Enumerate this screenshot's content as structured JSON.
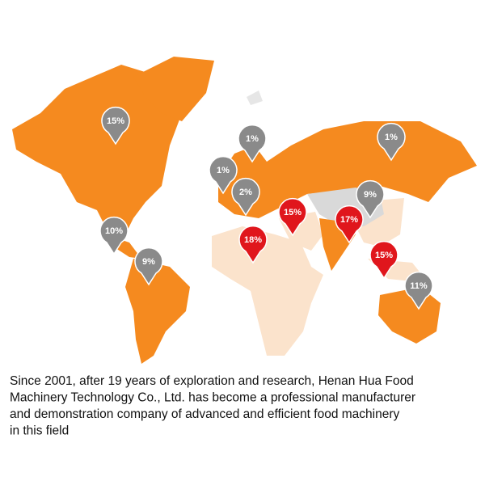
{
  "map": {
    "pins": [
      {
        "label": "15%",
        "color": "#8a8a8a"
      },
      {
        "label": "1%",
        "color": "#8a8a8a"
      },
      {
        "label": "1%",
        "color": "#8a8a8a"
      },
      {
        "label": "1%",
        "color": "#8a8a8a"
      },
      {
        "label": "2%",
        "color": "#8a8a8a"
      },
      {
        "label": "9%",
        "color": "#8a8a8a"
      },
      {
        "label": "15%",
        "color": "#e0161c"
      },
      {
        "label": "17%",
        "color": "#e0161c"
      },
      {
        "label": "10%",
        "color": "#8a8a8a"
      },
      {
        "label": "18%",
        "color": "#e0161c"
      },
      {
        "label": "9%",
        "color": "#8a8a8a"
      },
      {
        "label": "15%",
        "color": "#e0161c"
      },
      {
        "label": "11%",
        "color": "#8a8a8a"
      }
    ]
  },
  "caption": {
    "lines": [
      "Since 2001, after 19 years of exploration and research, Henan Hua Food",
      "Machinery Technology Co., Ltd. has become a professional manufacturer",
      "and demonstration company of advanced and efficient food machinery",
      "in this field"
    ]
  }
}
